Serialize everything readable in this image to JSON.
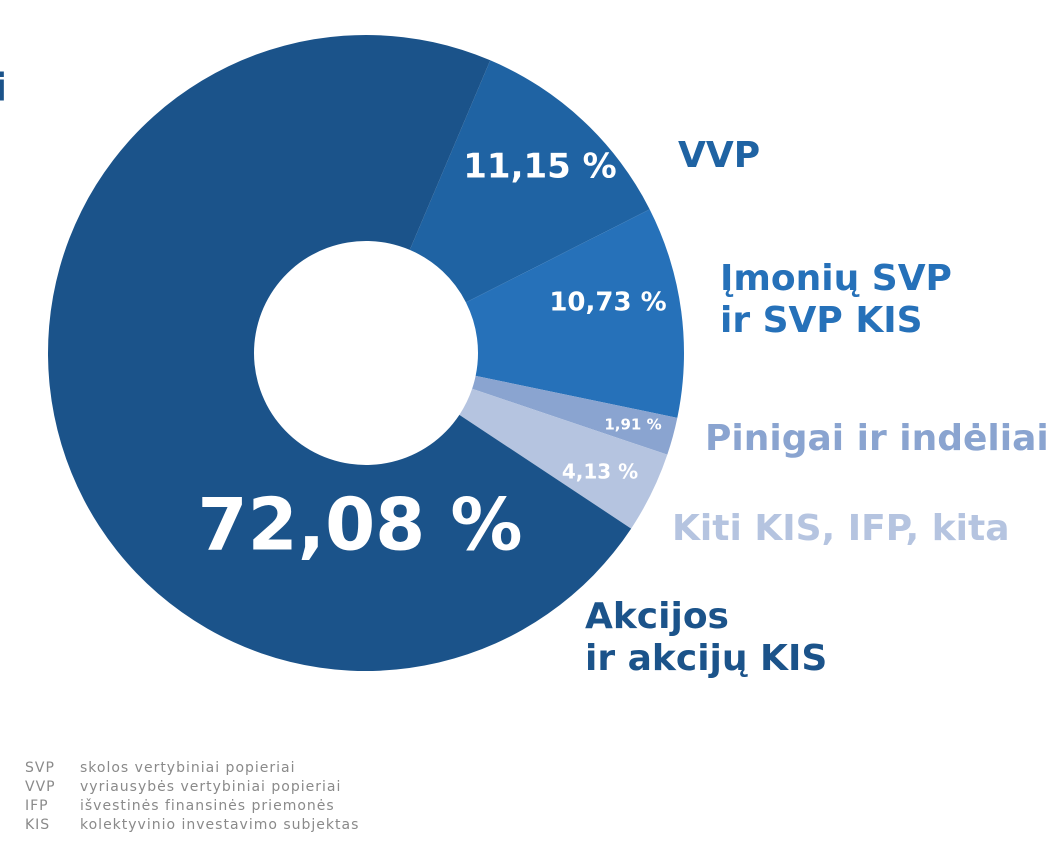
{
  "chart_data": {
    "type": "donut",
    "title": "i",
    "categories": [
      [
        "VVP"
      ],
      [
        "Įmonių SVP",
        "ir SVP KIS"
      ],
      [
        "Pinigai ir indėliai"
      ],
      [
        "Kiti KIS, IFP, kita"
      ],
      [
        "Akcijos",
        "ir akcijų KIS"
      ]
    ],
    "values": [
      11.15,
      10.73,
      1.91,
      4.13,
      72.08
    ],
    "value_labels": [
      "11,15 %",
      "10,73 %",
      "1,91 %",
      "4,13 %",
      "72,08 %"
    ],
    "colors": [
      "#1f63a3",
      "#2671b9",
      "#8aa4d0",
      "#b5c4e0",
      "#1b538a"
    ],
    "glossary": [
      [
        "SVP",
        "skolos vertybiniai popieriai"
      ],
      [
        "VVP",
        "vyriausybės vertybiniai popieriai"
      ],
      [
        "IFP",
        "išvestinės finansinės priemonės"
      ],
      [
        "KIS",
        "kolektyvinio investavimo subjektas"
      ]
    ]
  }
}
